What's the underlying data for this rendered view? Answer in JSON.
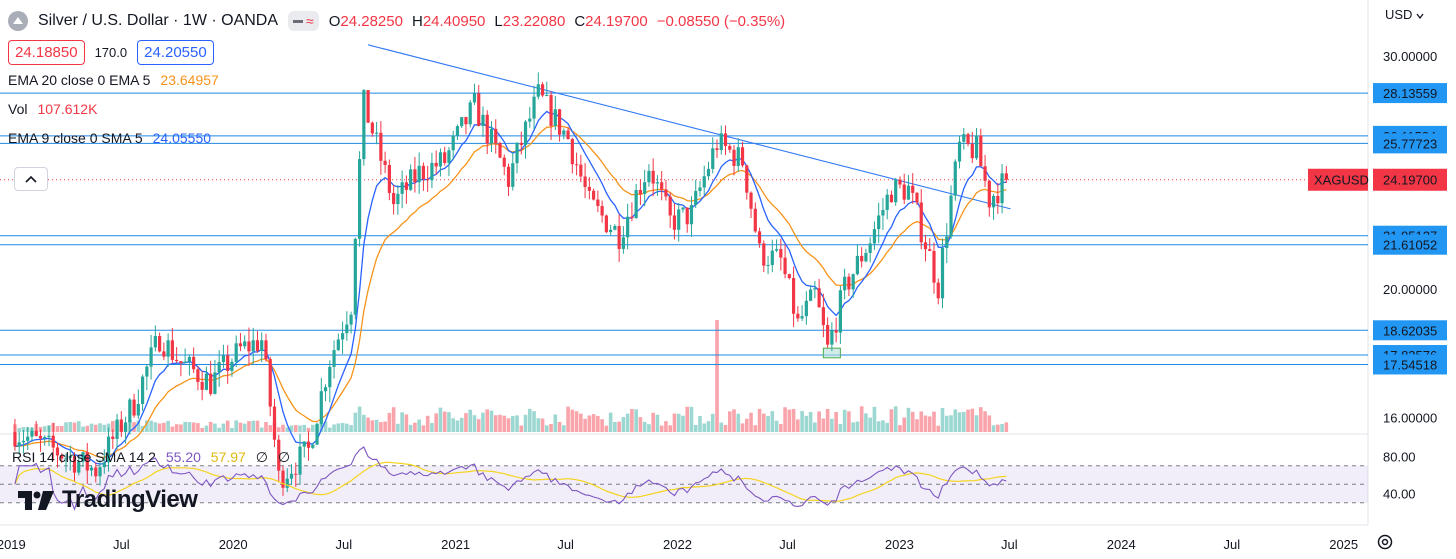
{
  "header": {
    "title": "Silver / U.S. Dollar · 1W · OANDA",
    "ohlc": {
      "open_key": "O",
      "open": "24.28250",
      "high_key": "H",
      "high": "24.40950",
      "low_key": "L",
      "low": "23.22080",
      "close_key": "C",
      "close": "24.19700",
      "change": "−0.08550 (−0.35%)"
    },
    "bid": "24.18850",
    "spread": "170.0",
    "ask": "24.20550"
  },
  "indicators": {
    "ema20": {
      "label": "EMA 20 close 0 EMA 5",
      "value": "23.64957",
      "color": "#f7931a"
    },
    "vol": {
      "label": "Vol",
      "value": "107.612K",
      "color": "#f23645"
    },
    "ema9": {
      "label": "EMA 9 close 0 SMA 5",
      "value": "24.05550",
      "color": "#2962ff"
    }
  },
  "rsi": {
    "label": "RSI 14 close SMA 14 2",
    "rsi_value": "55.20",
    "sma_value": "57.97",
    "extra1": "∅",
    "extra2": "∅",
    "axis": [
      "80.00",
      "40.00"
    ]
  },
  "currency_label": "USD",
  "symbol_tag": "XAGUSD",
  "last_price": "24.19700",
  "logo_text": "TradingView",
  "colors": {
    "up": "#26a69a",
    "down": "#f23645",
    "ema9": "#2962ff",
    "ema20": "#f7931a",
    "level": "#1e88e5",
    "rsi": "#7e57c2",
    "rsi_sma": "#f5d41f",
    "label_bg": "#2196f3"
  },
  "chart_data": {
    "type": "candlestick",
    "title": "Silver / U.S. Dollar · 1W · OANDA",
    "y_scale": "log",
    "ylim": [
      15.6,
      31.4
    ],
    "y_ticks": [
      30.0,
      20.0,
      16.0
    ],
    "y_tick_labels": [
      "30.00000",
      "20.00000",
      "16.00000"
    ],
    "x_range": [
      "2018-12-20",
      "2025-02-10"
    ],
    "x_ticks": [
      {
        "date": "2019-01-01",
        "label": "2019"
      },
      {
        "date": "2019-07-01",
        "label": "Jul"
      },
      {
        "date": "2020-01-01",
        "label": "2020"
      },
      {
        "date": "2020-07-01",
        "label": "Jul"
      },
      {
        "date": "2021-01-01",
        "label": "2021"
      },
      {
        "date": "2021-07-01",
        "label": "Jul"
      },
      {
        "date": "2022-01-01",
        "label": "2022"
      },
      {
        "date": "2022-07-01",
        "label": "Jul"
      },
      {
        "date": "2023-01-01",
        "label": "2023"
      },
      {
        "date": "2023-07-01",
        "label": "Jul"
      },
      {
        "date": "2024-01-01",
        "label": "2024"
      },
      {
        "date": "2024-07-01",
        "label": "Jul"
      },
      {
        "date": "2025-01-01",
        "label": "2025"
      }
    ],
    "horizontal_levels": [
      {
        "value": 28.13559,
        "label": "28.13559"
      },
      {
        "value": 26.11584,
        "label": "26.11584"
      },
      {
        "value": 25.77723,
        "label": "25.77723"
      },
      {
        "value": 21.95127,
        "label": "21.95127"
      },
      {
        "value": 21.61052,
        "label": "21.61052"
      },
      {
        "value": 18.62035,
        "label": "18.62035"
      },
      {
        "value": 17.83576,
        "label": "17.83576"
      },
      {
        "value": 17.54518,
        "label": "17.54518"
      }
    ],
    "last_price": 24.197,
    "trendline": {
      "start": {
        "date": "2020-08-10",
        "value": 30.6
      },
      "end": {
        "date": "2023-07-03",
        "value": 23.0
      }
    },
    "highlight_box": {
      "start": "2022-08-29",
      "end": "2022-09-26",
      "low": 17.75,
      "high": 18.05
    },
    "anchors": [
      {
        "date": "2019-01-07",
        "close": 15.6
      },
      {
        "date": "2019-05-20",
        "close": 14.6
      },
      {
        "date": "2019-06-17",
        "close": 15.4
      },
      {
        "date": "2019-07-22",
        "close": 16.4
      },
      {
        "date": "2019-09-02",
        "close": 18.4
      },
      {
        "date": "2019-10-07",
        "close": 17.6
      },
      {
        "date": "2019-11-25",
        "close": 17.0
      },
      {
        "date": "2020-01-13",
        "close": 18.0
      },
      {
        "date": "2020-02-17",
        "close": 18.3
      },
      {
        "date": "2020-03-16",
        "close": 14.4
      },
      {
        "date": "2020-05-04",
        "close": 15.1
      },
      {
        "date": "2020-06-08",
        "close": 17.7
      },
      {
        "date": "2020-07-13",
        "close": 19.5
      },
      {
        "date": "2020-08-03",
        "close": 27.6
      },
      {
        "date": "2020-09-21",
        "close": 23.2
      },
      {
        "date": "2020-11-02",
        "close": 24.5
      },
      {
        "date": "2020-12-14",
        "close": 25.0
      },
      {
        "date": "2021-02-01",
        "close": 27.5
      },
      {
        "date": "2021-03-29",
        "close": 24.2
      },
      {
        "date": "2021-05-17",
        "close": 28.0
      },
      {
        "date": "2021-07-05",
        "close": 26.0
      },
      {
        "date": "2021-08-09",
        "close": 23.2
      },
      {
        "date": "2021-09-27",
        "close": 22.0
      },
      {
        "date": "2021-11-15",
        "close": 24.8
      },
      {
        "date": "2021-12-20",
        "close": 22.5
      },
      {
        "date": "2022-01-24",
        "close": 22.8
      },
      {
        "date": "2022-03-07",
        "close": 25.8
      },
      {
        "date": "2022-04-18",
        "close": 25.0
      },
      {
        "date": "2022-05-16",
        "close": 21.3
      },
      {
        "date": "2022-06-20",
        "close": 21.0
      },
      {
        "date": "2022-07-18",
        "close": 18.8
      },
      {
        "date": "2022-08-15",
        "close": 19.8
      },
      {
        "date": "2022-09-05",
        "close": 18.0
      },
      {
        "date": "2022-10-03",
        "close": 20.0
      },
      {
        "date": "2022-11-14",
        "close": 21.8
      },
      {
        "date": "2022-12-19",
        "close": 23.8
      },
      {
        "date": "2023-01-16",
        "close": 23.8
      },
      {
        "date": "2023-03-06",
        "close": 20.1
      },
      {
        "date": "2023-04-10",
        "close": 25.6
      },
      {
        "date": "2023-05-08",
        "close": 25.5
      },
      {
        "date": "2023-05-29",
        "close": 23.4
      },
      {
        "date": "2023-06-26",
        "close": 24.2
      }
    ],
    "volume_spike": {
      "date": "2022-03-07",
      "relative": 0.75
    },
    "rsi_ylim": [
      20,
      100
    ],
    "rsi_levels": [
      70,
      50,
      30
    ]
  }
}
